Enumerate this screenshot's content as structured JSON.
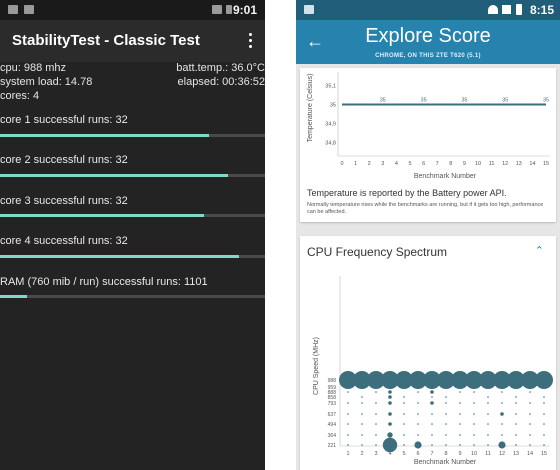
{
  "left_phone": {
    "status_bar": {
      "time": "9:01"
    },
    "app_title": "StabilityTest - Classic Test",
    "stats": {
      "cpu": "cpu: 988 mhz",
      "batt_temp": "batt.temp.: 36.0°C",
      "system_load": "system load: 14.78",
      "elapsed": "elapsed: 00:36:52",
      "cores": "cores: 4"
    },
    "runs": [
      {
        "label": "core 1 successful runs: 32",
        "progress": 0.79
      },
      {
        "label": "core 2 successful runs: 32",
        "progress": 0.86
      },
      {
        "label": "core 3 successful runs: 32",
        "progress": 0.77
      },
      {
        "label": "core 4 successful runs: 32",
        "progress": 0.9
      },
      {
        "label": "RAM (760 mib / run) successful runs: 1101",
        "progress": 0.1
      }
    ],
    "accent_color": "#7fd9c8"
  },
  "right_phone": {
    "status_bar": {
      "time": "8:15"
    },
    "header": {
      "title": "Explore Score",
      "subtitle": "CHROME, ON THIS ZTE T620 (5.1)"
    },
    "temperature_card": {
      "note": "Temperature is reported by the Battery power API.",
      "note_small": "Normally temperature rises while the benchmarks are running, but if it gets too high, performance can be affected."
    },
    "cpu_card": {
      "title": "CPU Frequency Spectrum"
    },
    "header_color": "#2583ad",
    "mark_color": "#3c6e7e"
  },
  "chart_data": [
    {
      "type": "line",
      "xlabel": "Benchmark Number",
      "ylabel": "Temperature (Celsius)",
      "x": [
        0,
        1,
        2,
        3,
        4,
        5,
        6,
        7,
        8,
        9,
        10,
        11,
        12,
        13,
        14,
        15
      ],
      "y_ticks": [
        "35,1",
        "35",
        "34,9",
        "34,8"
      ],
      "ylim": [
        34.75,
        35.15
      ],
      "series": [
        {
          "values": [
            35,
            35,
            35,
            35,
            35,
            35,
            35,
            35,
            35,
            35,
            35,
            35,
            35,
            35,
            35,
            35
          ]
        }
      ],
      "data_labels": [
        {
          "x": 3,
          "text": "35"
        },
        {
          "x": 6,
          "text": "35"
        },
        {
          "x": 9,
          "text": "35"
        },
        {
          "x": 12,
          "text": "35"
        },
        {
          "x": 15,
          "text": "35"
        }
      ]
    },
    {
      "type": "scatter",
      "xlabel": "Benchmark Number",
      "ylabel": "CPU Speed (MHz)",
      "x": [
        1,
        2,
        3,
        4,
        5,
        6,
        7,
        8,
        9,
        10,
        11,
        12,
        13,
        14,
        15
      ],
      "y_ticks": [
        "988",
        "959",
        "888",
        "858",
        "793",
        "637",
        "494",
        "364",
        "221"
      ],
      "rows": [
        {
          "freq": "988",
          "weights": [
            10,
            10,
            10,
            10,
            10,
            10,
            10,
            10,
            10,
            10,
            10,
            10,
            10,
            10,
            10
          ]
        },
        {
          "freq": "959",
          "weights": [
            0,
            0,
            0,
            2,
            0,
            0,
            0,
            0,
            0,
            0,
            0,
            0,
            0,
            0,
            0
          ]
        },
        {
          "freq": "888",
          "weights": [
            1,
            0,
            1,
            2,
            0,
            1,
            2,
            0,
            1,
            1,
            0,
            1,
            0,
            1,
            0
          ]
        },
        {
          "freq": "858",
          "weights": [
            0,
            1,
            0,
            2,
            1,
            0,
            1,
            1,
            0,
            0,
            1,
            0,
            1,
            0,
            1
          ]
        },
        {
          "freq": "793",
          "weights": [
            1,
            1,
            1,
            2,
            1,
            1,
            2,
            1,
            1,
            1,
            1,
            1,
            1,
            1,
            1
          ]
        },
        {
          "freq": "637",
          "weights": [
            1,
            1,
            1,
            2,
            1,
            1,
            1,
            1,
            1,
            1,
            1,
            2,
            1,
            1,
            1
          ]
        },
        {
          "freq": "494",
          "weights": [
            1,
            1,
            1,
            2,
            1,
            1,
            1,
            1,
            1,
            1,
            1,
            1,
            1,
            1,
            1
          ]
        },
        {
          "freq": "364",
          "weights": [
            1,
            1,
            1,
            3,
            1,
            1,
            1,
            1,
            1,
            1,
            1,
            1,
            1,
            1,
            1
          ]
        },
        {
          "freq": "221",
          "weights": [
            1,
            1,
            1,
            8,
            1,
            4,
            1,
            1,
            1,
            1,
            1,
            4,
            1,
            1,
            1
          ]
        }
      ]
    }
  ]
}
